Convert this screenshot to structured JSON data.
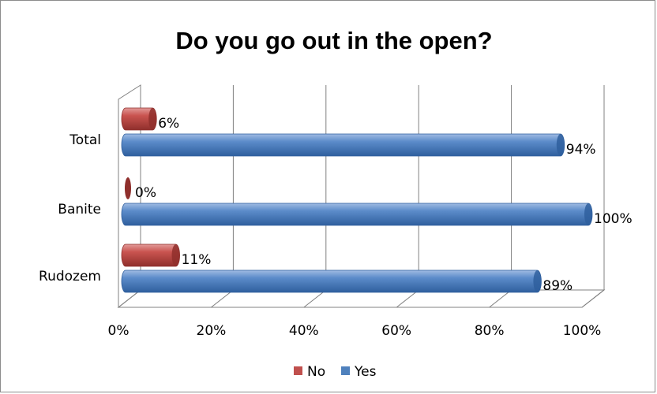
{
  "chart_data": {
    "type": "bar",
    "orientation": "horizontal",
    "style": "3d-cylinder",
    "title": "Do you go out in the open?",
    "categories": [
      "Total",
      "Banite",
      "Rudozem"
    ],
    "series": [
      {
        "name": "No",
        "values": [
          6,
          0,
          11
        ],
        "labels": [
          "6%",
          "0%",
          "11%"
        ],
        "color": "#C0504D"
      },
      {
        "name": "Yes",
        "values": [
          94,
          100,
          89
        ],
        "labels": [
          "94%",
          "100%",
          "89%"
        ],
        "color": "#4F81BD"
      }
    ],
    "xlim": [
      0,
      100
    ],
    "x_ticks": [
      "0%",
      "20%",
      "40%",
      "60%",
      "80%",
      "100%"
    ],
    "grid": true,
    "legend_position": "bottom"
  }
}
